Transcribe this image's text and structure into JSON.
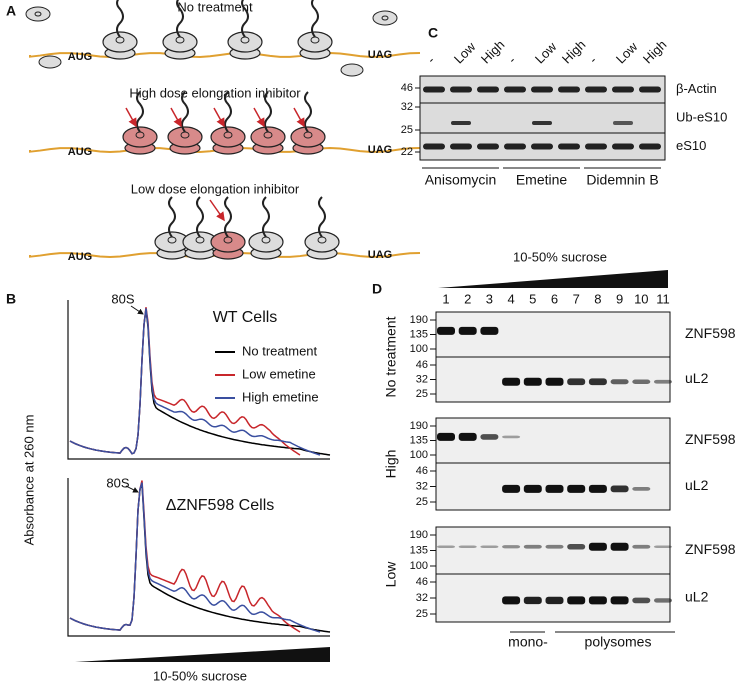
{
  "panel_a": {
    "label": "A",
    "start_codon": "AUG",
    "stop_codon": "UAG",
    "rows": [
      {
        "title": "No treatment"
      },
      {
        "title": "High dose elongation inhibitor"
      },
      {
        "title": "Low dose elongation inhibitor"
      }
    ]
  },
  "panel_b": {
    "label": "B",
    "y_label": "Absorbance at 260 nm",
    "x_label": "10-50% sucrose",
    "legend": [
      {
        "name": "No treatment",
        "color": "#000000"
      },
      {
        "name": "Low emetine",
        "color": "#c8262b"
      },
      {
        "name": "High emetine",
        "color": "#3a4fa0"
      }
    ],
    "plots": [
      {
        "title": "WT Cells",
        "peak": "80S"
      },
      {
        "title": "ΔZNF598 Cells",
        "peak": "80S"
      }
    ]
  },
  "panel_c": {
    "label": "C",
    "lane_labels": [
      "-",
      "Low",
      "High"
    ],
    "groups": [
      "Anisomycin",
      "Emetine",
      "Didemnin B"
    ],
    "blots": [
      {
        "name": "β-Actin",
        "markers": [
          46
        ]
      },
      {
        "name": "Ub-eS10",
        "markers": [
          32,
          25
        ]
      },
      {
        "name": "eS10",
        "markers": [
          22
        ]
      }
    ]
  },
  "panel_d": {
    "label": "D",
    "gradient": "10-50% sucrose",
    "fractions": [
      "1",
      "2",
      "3",
      "4",
      "5",
      "6",
      "7",
      "8",
      "9",
      "10",
      "11"
    ],
    "conditions": [
      {
        "name": "No treatment"
      },
      {
        "name": "High"
      },
      {
        "name": "Low"
      }
    ],
    "blots": [
      {
        "name": "ZNF598",
        "markers": [
          190,
          135,
          100
        ]
      },
      {
        "name": "uL2",
        "markers": [
          46,
          32,
          25
        ]
      }
    ],
    "mono": "mono-",
    "poly": "polysomes"
  }
}
